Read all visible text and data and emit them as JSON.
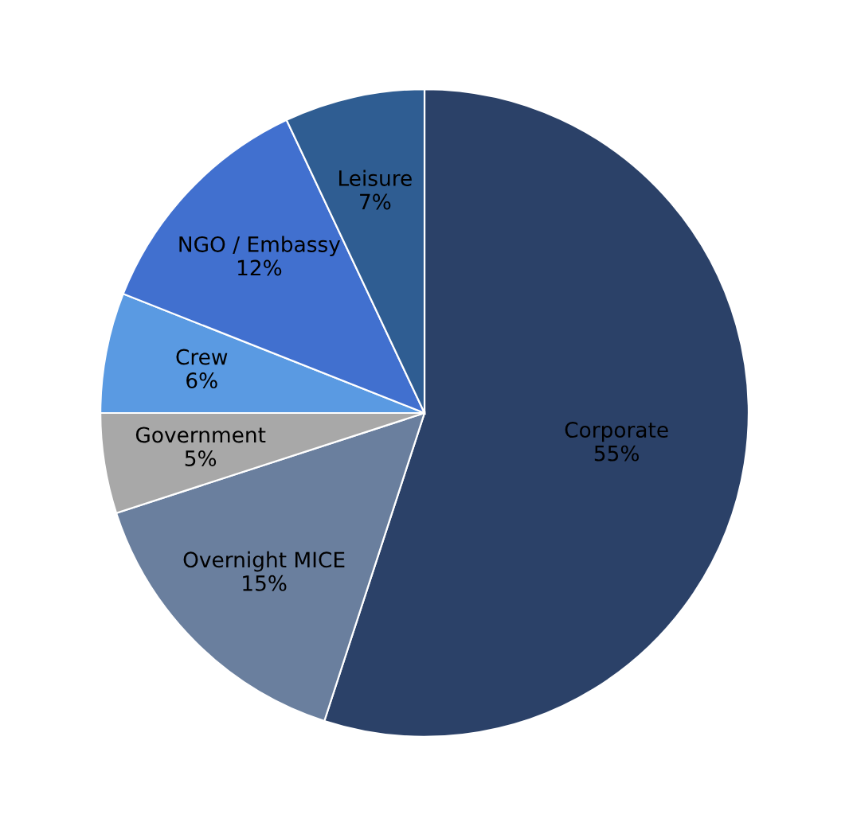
{
  "chart_data": {
    "type": "pie",
    "categories": [
      "Corporate",
      "Overnight MICE",
      "Government",
      "Crew",
      "NGO / Embassy",
      "Leisure"
    ],
    "values": [
      55,
      15,
      5,
      6,
      12,
      7
    ],
    "value_labels": [
      "55%",
      "15%",
      "5%",
      "6%",
      "12%",
      "7%"
    ],
    "colors": [
      "#2b4168",
      "#6a7f9e",
      "#a8a8a8",
      "#5a9ae2",
      "#4170cf",
      "#2f5d92"
    ]
  }
}
